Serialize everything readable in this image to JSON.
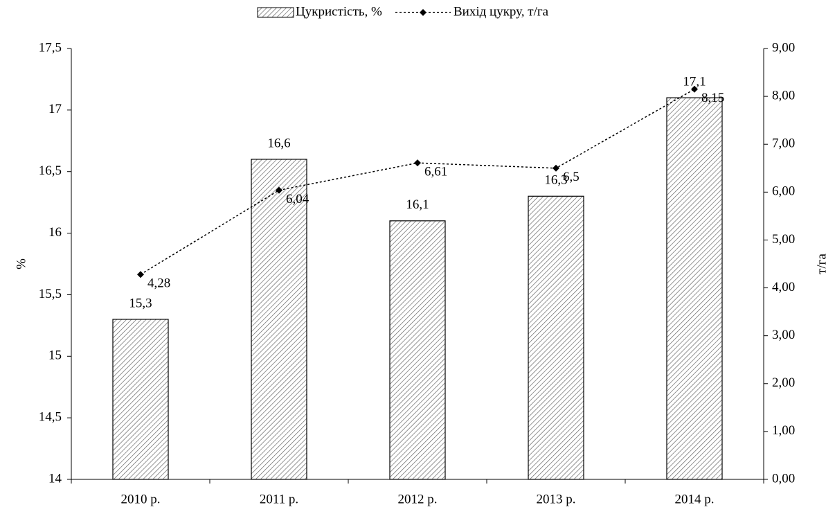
{
  "chart_data": {
    "type": "bar-line",
    "y_label": "%",
    "y2_label": "т/га",
    "categories": [
      "2010 р.",
      "2011 р.",
      "2012 р.",
      "2013 р.",
      "2014 р."
    ],
    "series": [
      {
        "name": "Цукристість, %",
        "type": "bar",
        "color": "#000000",
        "values": [
          15.3,
          16.6,
          16.1,
          16.3,
          17.1
        ],
        "value_labels": [
          "15,3",
          "16,6",
          "16,1",
          "16,3",
          "17,1"
        ]
      },
      {
        "name": "Вихід цукру, т/га",
        "type": "line",
        "axis": "y2",
        "color": "#000000",
        "values": [
          4.28,
          6.04,
          6.61,
          6.5,
          8.15
        ],
        "value_labels": [
          "4,28",
          "6,04",
          "6,61",
          "6,5",
          "8,15"
        ]
      }
    ],
    "ylim": [
      14,
      17.5
    ],
    "yticks": [
      14,
      {
        "value": 14.5,
        "label": "14,5"
      },
      15,
      {
        "value": 15.5,
        "label": "15,5"
      },
      16,
      {
        "value": 16.5,
        "label": "16,5"
      },
      17,
      {
        "value": 17.5,
        "label": "17,5"
      }
    ],
    "y2lim": [
      0,
      9
    ],
    "y2ticks": [
      {
        "value": 0,
        "label": "0,00"
      },
      {
        "value": 1,
        "label": "1,00"
      },
      {
        "value": 2,
        "label": "2,00"
      },
      {
        "value": 3,
        "label": "3,00"
      },
      {
        "value": 4,
        "label": "4,00"
      },
      {
        "value": 5,
        "label": "5,00"
      },
      {
        "value": 6,
        "label": "6,00"
      },
      {
        "value": 7,
        "label": "7,00"
      },
      {
        "value": 8,
        "label": "8,00"
      },
      {
        "value": 9,
        "label": "9,00"
      }
    ],
    "legend": "top"
  }
}
